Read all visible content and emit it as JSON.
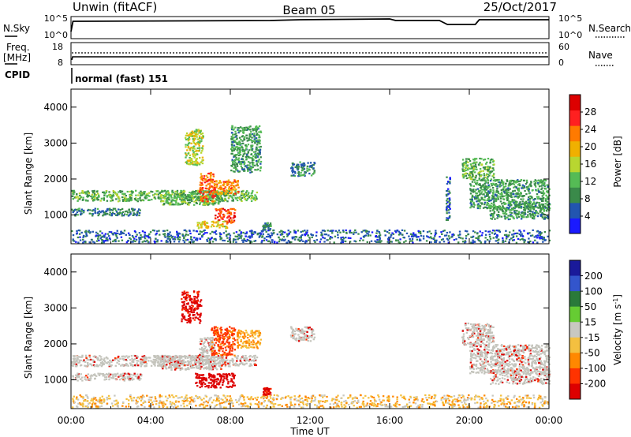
{
  "header": {
    "station": "Unwin (fitACF)",
    "beam": "Beam 05",
    "date": "25/Oct/2017"
  },
  "top_panel": {
    "nsky_label": "N.Sky",
    "nsearch_label": "N.Search",
    "left_ticks": [
      "10^5",
      "10^0"
    ],
    "right_ticks": [
      "10^5",
      "10^0"
    ]
  },
  "freq_panel": {
    "freq_label": "Freq.",
    "freq_unit": "[MHz]",
    "nave_label": "Nave",
    "left_ticks": [
      "18",
      "8"
    ],
    "right_ticks": [
      "60",
      "0"
    ]
  },
  "cpid_panel": {
    "cpid_label": "CPID",
    "mode_text": "normal (fast) 151"
  },
  "colors": {
    "power": [
      "#1a1aff",
      "#2255b0",
      "#3a8a4a",
      "#55bb55",
      "#b8d630",
      "#f0b000",
      "#ff7a00",
      "#ff2020",
      "#dd0000"
    ],
    "velocity": [
      "#1a1a9a",
      "#3355cc",
      "#2a7a3a",
      "#66cc33",
      "#c8c8c0",
      "#f4c040",
      "#ff8800",
      "#ff3300",
      "#dd0000"
    ],
    "ground_scatter": "#c4c4bc"
  },
  "chart_data": [
    {
      "type": "heatmap",
      "name": "power",
      "ylabel": "Slant Range [km]",
      "ylim": [
        200,
        4500
      ],
      "xlim_hours": [
        0,
        24
      ],
      "y_ticks": [
        "4000",
        "3000",
        "2000",
        "1000"
      ],
      "y_tick_values": [
        4000,
        3000,
        2000,
        1000
      ],
      "colorbar": {
        "label": "Power [dB]",
        "range": [
          0,
          32
        ],
        "ticks": [
          "28",
          "24",
          "20",
          "16",
          "12",
          "8",
          "4"
        ],
        "tick_values": [
          28,
          24,
          20,
          16,
          12,
          8,
          4
        ]
      },
      "regions": [
        {
          "t": [
            0.0,
            9.3
          ],
          "r": [
            1400,
            1700
          ],
          "v": 12
        },
        {
          "t": [
            0.0,
            3.5
          ],
          "r": [
            1000,
            1200
          ],
          "v": 8
        },
        {
          "t": [
            4.5,
            7.5
          ],
          "r": [
            1300,
            1700
          ],
          "v": 12
        },
        {
          "t": [
            5.7,
            6.6
          ],
          "r": [
            2400,
            3400
          ],
          "v": 16
        },
        {
          "t": [
            6.4,
            7.2
          ],
          "r": [
            1400,
            2200
          ],
          "v": 24
        },
        {
          "t": [
            7.2,
            8.4
          ],
          "r": [
            1600,
            2000
          ],
          "v": 22
        },
        {
          "t": [
            7.2,
            8.2
          ],
          "r": [
            800,
            1200
          ],
          "v": 26
        },
        {
          "t": [
            6.3,
            7.8
          ],
          "r": [
            650,
            850
          ],
          "v": 18
        },
        {
          "t": [
            8.0,
            9.5
          ],
          "r": [
            2200,
            3500
          ],
          "v": 10
        },
        {
          "t": [
            9.6,
            10.0
          ],
          "r": [
            600,
            800
          ],
          "v": 8
        },
        {
          "t": [
            11.0,
            12.2
          ],
          "r": [
            2100,
            2500
          ],
          "v": 8
        },
        {
          "t": [
            0.0,
            24.0
          ],
          "r": [
            250,
            600
          ],
          "v": 6
        },
        {
          "t": [
            19.6,
            21.2
          ],
          "r": [
            2000,
            2600
          ],
          "v": 12
        },
        {
          "t": [
            20.0,
            24.0
          ],
          "r": [
            1200,
            2000
          ],
          "v": 10
        },
        {
          "t": [
            21.0,
            24.0
          ],
          "r": [
            900,
            1300
          ],
          "v": 10
        },
        {
          "t": [
            18.8,
            19.0
          ],
          "r": [
            800,
            2100
          ],
          "v": 6
        }
      ]
    },
    {
      "type": "heatmap",
      "name": "velocity",
      "ylabel": "Slant Range [km]",
      "xlabel": "Time UT",
      "ylim": [
        200,
        4500
      ],
      "xlim_hours": [
        0,
        24
      ],
      "y_ticks": [
        "4000",
        "3000",
        "2000",
        "1000"
      ],
      "y_tick_values": [
        4000,
        3000,
        2000,
        1000
      ],
      "x_ticks": [
        "00:00",
        "04:00",
        "08:00",
        "12:00",
        "16:00",
        "20:00",
        "00:00"
      ],
      "x_tick_values": [
        0,
        4,
        8,
        12,
        16,
        20,
        24
      ],
      "colorbar": {
        "label": "Velocity [m s^-1]",
        "ticks": [
          "200",
          "100",
          "50",
          "15",
          "-15",
          "-50",
          "-100",
          "-200"
        ],
        "tick_values": [
          200,
          100,
          50,
          15,
          -15,
          -50,
          -100,
          -200
        ]
      },
      "regions": [
        {
          "t": [
            0.0,
            9.3
          ],
          "r": [
            1400,
            1700
          ],
          "v": 0,
          "gs": true
        },
        {
          "t": [
            0.0,
            3.5
          ],
          "r": [
            1000,
            1200
          ],
          "v": 0,
          "gs": true
        },
        {
          "t": [
            4.5,
            7.5
          ],
          "r": [
            1300,
            1700
          ],
          "v": 0,
          "gs": true
        },
        {
          "t": [
            5.5,
            6.5
          ],
          "r": [
            2600,
            3500
          ],
          "v": -200
        },
        {
          "t": [
            6.4,
            7.2
          ],
          "r": [
            1400,
            2200
          ],
          "v": 0,
          "gs": true
        },
        {
          "t": [
            7.0,
            8.2
          ],
          "r": [
            1700,
            2500
          ],
          "v": -120
        },
        {
          "t": [
            6.2,
            8.2
          ],
          "r": [
            800,
            1200
          ],
          "v": -220
        },
        {
          "t": [
            8.3,
            9.5
          ],
          "r": [
            1900,
            2400
          ],
          "v": -60
        },
        {
          "t": [
            9.6,
            10.0
          ],
          "r": [
            600,
            800
          ],
          "v": -200
        },
        {
          "t": [
            11.0,
            12.2
          ],
          "r": [
            2100,
            2500
          ],
          "v": 0,
          "gs": true
        },
        {
          "t": [
            0.0,
            24.0
          ],
          "r": [
            250,
            600
          ],
          "v": -30
        },
        {
          "t": [
            19.6,
            21.2
          ],
          "r": [
            2000,
            2600
          ],
          "v": 0,
          "gs": true
        },
        {
          "t": [
            20.0,
            24.0
          ],
          "r": [
            1200,
            2000
          ],
          "v": 0,
          "gs": true
        },
        {
          "t": [
            21.0,
            24.0
          ],
          "r": [
            900,
            1300
          ],
          "v": 0,
          "gs": true
        }
      ]
    }
  ]
}
